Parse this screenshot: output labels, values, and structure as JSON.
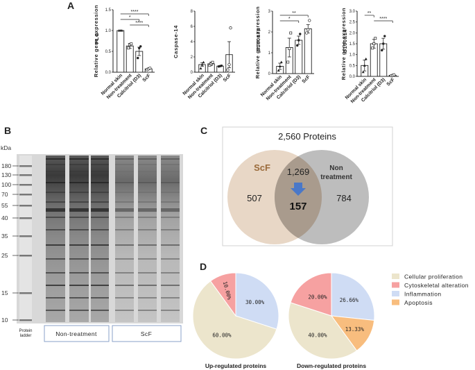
{
  "panels": {
    "a": "A",
    "b": "B",
    "c": "C",
    "d": "D"
  },
  "groups": [
    "Normal skin",
    "Non-treatment",
    "Calcitriol (D3)",
    "ScF"
  ],
  "chart_data": [
    {
      "type": "bar",
      "ylabel": "Relative gene expression",
      "title": "FLG",
      "ylim": [
        0,
        1.5
      ],
      "yticks": [
        "0.0",
        "0.5",
        "1.0",
        "1.5"
      ],
      "values": [
        1.0,
        0.63,
        0.5,
        0.08
      ],
      "errors": [
        0.0,
        0.06,
        0.1,
        0.02
      ],
      "points": [
        [
          1.0,
          1.0,
          1.0
        ],
        [
          0.58,
          0.66,
          0.68
        ],
        [
          0.34,
          0.58,
          0.62
        ],
        [
          0.06,
          0.08,
          0.1
        ]
      ],
      "significance": [
        {
          "from": 0,
          "to": 3,
          "label": "****"
        },
        {
          "from": 0,
          "to": 2,
          "label": "*"
        },
        {
          "from": 1,
          "to": 3,
          "label": "****"
        }
      ]
    },
    {
      "type": "bar",
      "ylabel": "Caspase-14",
      "title": "",
      "ylim": [
        0,
        8
      ],
      "yticks": [
        "0",
        "2",
        "4",
        "6",
        "8"
      ],
      "values": [
        1.0,
        1.1,
        0.8,
        2.3
      ],
      "errors": [
        0.25,
        0.2,
        0.05,
        1.7
      ],
      "points": [
        [
          0.5,
          1.0,
          1.3
        ],
        [
          0.9,
          1.1,
          1.3
        ],
        [
          0.75,
          0.8,
          0.85
        ],
        [
          0.3,
          1.0,
          5.8
        ]
      ],
      "significance": []
    },
    {
      "type": "bar",
      "ylabel": "Relative gene expression",
      "title": "S100a7a",
      "ylim": [
        0,
        3
      ],
      "yticks": [
        "0",
        "1",
        "2",
        "3"
      ],
      "values": [
        0.35,
        1.25,
        1.6,
        2.15
      ],
      "errors": [
        0.15,
        0.45,
        0.2,
        0.2
      ],
      "points": [
        [
          0.15,
          0.35,
          0.55
        ],
        [
          0.55,
          1.2,
          1.95
        ],
        [
          1.35,
          1.6,
          1.9
        ],
        [
          1.95,
          2.1,
          2.55
        ]
      ],
      "significance": [
        {
          "from": 0,
          "to": 3,
          "label": "**"
        },
        {
          "from": 0,
          "to": 2,
          "label": "*"
        }
      ]
    },
    {
      "type": "bar",
      "ylabel": "Relative gene expression",
      "title": "S100a14",
      "ylim": [
        0,
        3
      ],
      "yticks": [
        "0.0",
        "0.5",
        "1.0",
        "1.5",
        "2.0",
        "2.5",
        "3.0"
      ],
      "values": [
        0.5,
        1.5,
        1.5,
        0.05
      ],
      "errors": [
        0.25,
        0.2,
        0.25,
        0.02
      ],
      "points": [
        [
          0.2,
          0.5,
          0.8
        ],
        [
          1.3,
          1.5,
          1.75
        ],
        [
          1.2,
          1.5,
          1.85
        ],
        [
          0.03,
          0.05,
          0.07
        ]
      ],
      "significance": [
        {
          "from": 0,
          "to": 1,
          "label": "**"
        },
        {
          "from": 1,
          "to": 3,
          "label": "****"
        }
      ]
    },
    {
      "type": "pie",
      "title": "Up-regulated proteins",
      "labels": [
        "Cellular proliferation",
        "Cytoskeletal alteration",
        "Inflammation"
      ],
      "values": [
        60.0,
        10.0,
        30.0
      ],
      "value_labels": [
        "60.00%",
        "10.00%",
        "30.00%"
      ]
    },
    {
      "type": "pie",
      "title": "Down-regulated proteins",
      "labels": [
        "Cellular proliferation",
        "Cytoskeletal alteration",
        "Inflammation",
        "Apoptosis"
      ],
      "values": [
        40.0,
        20.0,
        26.66,
        13.33
      ],
      "value_labels": [
        "40.00%",
        "20.00%",
        "26.66%",
        "13.33%"
      ]
    }
  ],
  "legend": [
    {
      "label": "Cellular proliferation",
      "color": "#ece5cc"
    },
    {
      "label": "Cytoskeletal alteration",
      "color": "#f6a1a1"
    },
    {
      "label": "Inflammation",
      "color": "#cfdcf4"
    },
    {
      "label": "Apoptosis",
      "color": "#f8bd7e"
    }
  ],
  "gel": {
    "unit": "kDa",
    "markers": [
      "180",
      "130",
      "100",
      "70",
      "55",
      "40",
      "35",
      "25",
      "15",
      "10"
    ],
    "ladder_label": "Protein ladder",
    "group_labels": [
      "Non-treatment",
      "ScF"
    ]
  },
  "venn": {
    "total": "2,560 Proteins",
    "left_label": "ScF",
    "right_label": "Non treatment",
    "left_only": "507",
    "overlap": "1,269",
    "right_only": "784",
    "highlight": "157",
    "colors": {
      "left": "#e8d7c6",
      "right": "#bdbdbd",
      "overlap": "#a99b8d",
      "left_text": "#9a6a3a",
      "arrow": "#4a78c8"
    }
  }
}
